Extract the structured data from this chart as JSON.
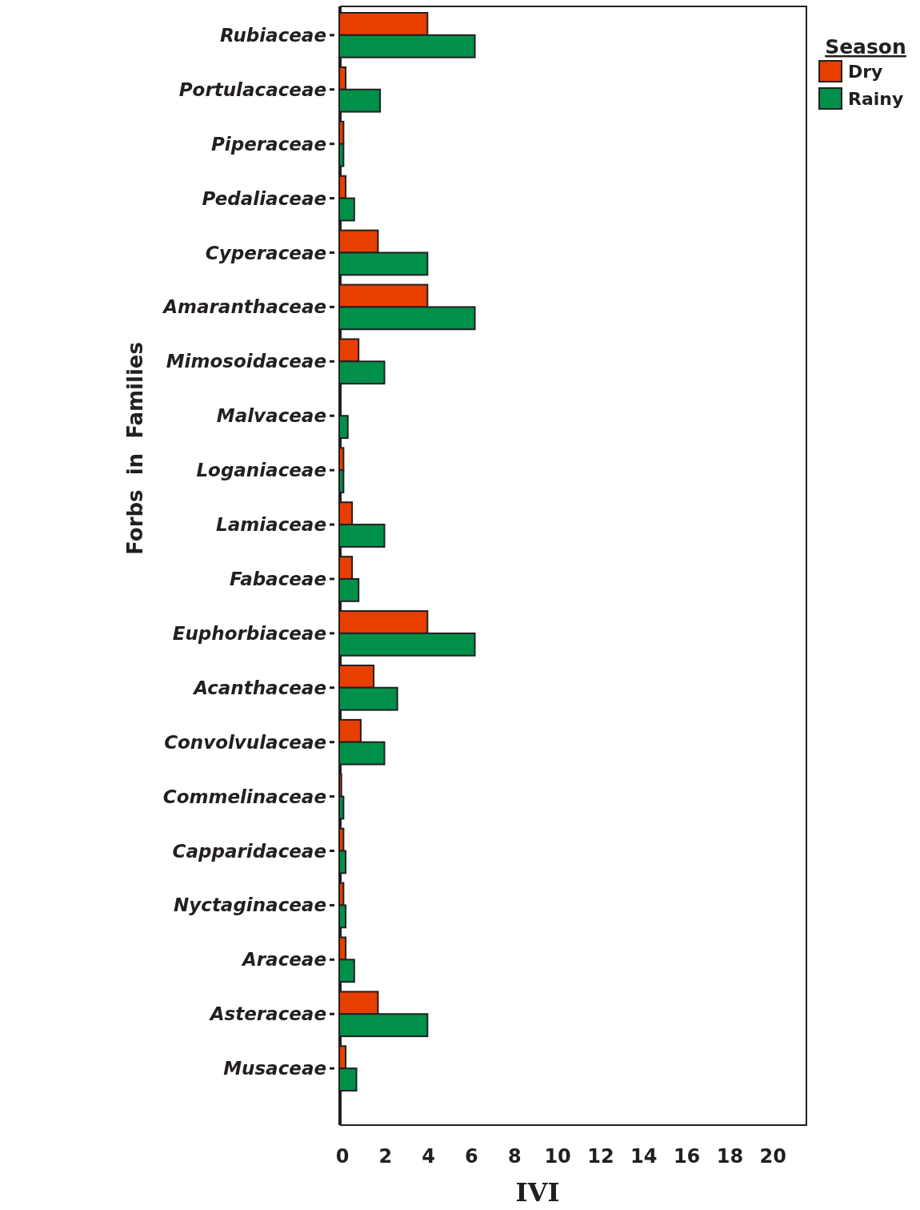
{
  "chart_data": {
    "type": "bar",
    "orientation": "horizontal",
    "xlabel": "IVI",
    "ylabel": "Forbs  in  Families",
    "legend_title": "Season",
    "legend": "top right",
    "grid": false,
    "categories": [
      "Rubiaceae",
      "Portulacaceae",
      "Piperaceae",
      "Pedaliaceae",
      "Cyperaceae",
      "Amaranthaceae",
      "Mimosoidaceae",
      "Malvaceae",
      "Loganiaceae",
      "Lamiaceae",
      "Fabaceae",
      "Euphorbiaceae",
      "Acanthaceae",
      "Convolvulaceae",
      "Commelinaceae",
      "Capparidaceae",
      "Nyctaginaceae",
      "Araceae",
      "Asteraceae",
      "Musaceae"
    ],
    "series": [
      {
        "name": "Dry",
        "color": "#e83e00",
        "values": [
          4.1,
          0.3,
          0.2,
          0.3,
          1.8,
          4.1,
          0.9,
          0,
          0.2,
          0.6,
          0.6,
          4.1,
          1.6,
          1.0,
          0.1,
          0.2,
          0.2,
          0.3,
          1.8,
          0.3
        ]
      },
      {
        "name": "Rainy",
        "color": "#00904a",
        "values": [
          6.3,
          1.9,
          0.2,
          0.7,
          4.1,
          6.3,
          2.1,
          0.4,
          0.2,
          2.1,
          0.9,
          6.3,
          2.7,
          2.1,
          0.2,
          0.3,
          0.3,
          0.7,
          4.1,
          0.8
        ]
      }
    ],
    "xlim": [
      0,
      21.7
    ],
    "xticks": [
      0,
      2,
      4,
      6,
      8,
      10,
      12,
      14,
      16,
      18,
      20
    ]
  }
}
